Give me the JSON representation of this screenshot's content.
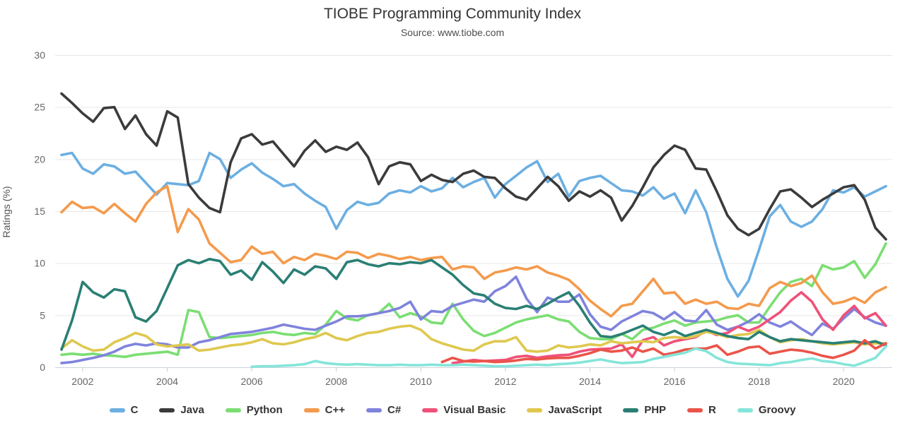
{
  "header": {
    "title": "TIOBE Programming Community Index",
    "subtitle": "Source: www.tiobe.com"
  },
  "chart_data": {
    "type": "line",
    "title": "TIOBE Programming Community Index",
    "subtitle": "Source: www.tiobe.com",
    "xlabel": "",
    "ylabel": "Ratings (%)",
    "legend_position": "bottom",
    "grid": "horizontal",
    "x_start": 2001.5,
    "x_step": 0.25,
    "x_end": 2021.0,
    "xlim": [
      2001.35,
      2021.15
    ],
    "ylim": [
      0,
      30
    ],
    "y_ticks": [
      0,
      5,
      10,
      15,
      20,
      25,
      30
    ],
    "x_ticks": [
      2002,
      2004,
      2006,
      2008,
      2010,
      2012,
      2014,
      2016,
      2018,
      2020
    ],
    "series": [
      {
        "name": "C",
        "color": "#6CAFE2",
        "values": [
          20.4,
          20.6,
          19.1,
          18.6,
          19.5,
          19.3,
          18.6,
          18.8,
          17.7,
          16.6,
          17.7,
          17.6,
          17.5,
          17.9,
          20.6,
          20.0,
          18.2,
          19.0,
          19.6,
          18.7,
          18.1,
          17.4,
          17.6,
          16.7,
          16.0,
          15.4,
          13.3,
          15.1,
          15.9,
          15.6,
          15.8,
          16.7,
          17.0,
          16.8,
          17.4,
          16.9,
          17.2,
          18.2,
          17.3,
          17.8,
          18.2,
          16.3,
          17.6,
          18.4,
          19.2,
          19.8,
          17.8,
          18.6,
          16.4,
          17.9,
          18.2,
          18.4,
          17.7,
          17.0,
          16.9,
          16.5,
          17.3,
          16.2,
          16.7,
          14.8,
          17.0,
          14.9,
          11.5,
          8.5,
          6.8,
          8.3,
          11.3,
          14.5,
          15.6,
          14.0,
          13.5,
          14.0,
          15.2,
          17.0,
          16.8,
          17.3,
          16.4,
          16.9,
          17.4
        ]
      },
      {
        "name": "Java",
        "color": "#3B3B3B",
        "values": [
          26.3,
          25.4,
          24.4,
          23.6,
          24.9,
          25.0,
          22.9,
          24.2,
          22.4,
          21.3,
          24.6,
          24.0,
          17.6,
          16.3,
          15.3,
          14.9,
          19.7,
          22.0,
          22.4,
          21.4,
          21.7,
          20.5,
          19.3,
          20.8,
          21.8,
          20.7,
          21.2,
          20.9,
          21.6,
          20.2,
          17.6,
          19.3,
          19.7,
          19.5,
          17.9,
          18.5,
          18.0,
          17.8,
          18.6,
          18.9,
          18.3,
          18.2,
          17.2,
          16.4,
          16.1,
          17.2,
          18.3,
          17.4,
          16.0,
          16.9,
          16.4,
          17.0,
          16.3,
          14.1,
          15.5,
          17.3,
          19.2,
          20.4,
          21.3,
          20.9,
          19.1,
          19.0,
          16.9,
          14.6,
          13.3,
          12.7,
          13.3,
          15.2,
          16.9,
          17.1,
          16.3,
          15.4,
          16.1,
          16.7,
          17.3,
          17.5,
          16.1,
          13.4,
          12.3
        ]
      },
      {
        "name": "Python",
        "color": "#7BDE73",
        "values": [
          1.2,
          1.3,
          1.2,
          1.3,
          1.15,
          1.1,
          1.0,
          1.2,
          1.3,
          1.4,
          1.5,
          1.2,
          5.5,
          5.3,
          2.9,
          2.8,
          2.9,
          3.0,
          3.1,
          3.3,
          3.4,
          3.2,
          3.1,
          3.3,
          3.2,
          4.1,
          5.4,
          4.7,
          4.5,
          5.0,
          5.2,
          6.1,
          4.8,
          5.2,
          4.9,
          4.3,
          4.2,
          6.1,
          4.6,
          3.5,
          3.0,
          3.3,
          3.8,
          4.3,
          4.6,
          4.8,
          5.0,
          4.6,
          4.4,
          3.4,
          2.8,
          2.7,
          2.7,
          3.2,
          2.7,
          3.6,
          3.8,
          4.2,
          4.5,
          4.0,
          4.3,
          4.4,
          4.5,
          4.8,
          5.0,
          4.3,
          4.3,
          5.8,
          7.2,
          8.2,
          8.5,
          7.8,
          9.8,
          9.4,
          9.6,
          10.2,
          8.6,
          9.9,
          11.9
        ]
      },
      {
        "name": "C++",
        "color": "#F49A4C",
        "values": [
          14.9,
          15.9,
          15.3,
          15.4,
          14.8,
          15.7,
          14.8,
          14.0,
          15.7,
          16.8,
          17.4,
          13.0,
          15.2,
          14.2,
          11.9,
          11.0,
          10.1,
          10.3,
          11.6,
          10.9,
          11.1,
          10.0,
          10.6,
          10.3,
          10.9,
          10.7,
          10.4,
          11.1,
          11.0,
          10.5,
          10.9,
          10.7,
          10.4,
          10.6,
          10.3,
          10.5,
          10.6,
          9.4,
          9.7,
          9.6,
          8.5,
          9.1,
          9.3,
          9.6,
          9.4,
          9.7,
          9.1,
          8.8,
          8.4,
          7.5,
          6.4,
          5.6,
          4.9,
          5.9,
          6.1,
          7.3,
          8.5,
          7.1,
          7.2,
          6.1,
          6.5,
          6.1,
          6.3,
          5.7,
          5.6,
          6.1,
          5.9,
          7.6,
          8.2,
          7.8,
          8.1,
          8.8,
          7.2,
          6.1,
          6.3,
          6.7,
          6.2,
          7.2,
          7.7
        ]
      },
      {
        "name": "C#",
        "color": "#7F83DC",
        "values": [
          0.4,
          0.5,
          0.7,
          0.9,
          1.15,
          1.5,
          2.0,
          2.25,
          2.1,
          2.3,
          2.2,
          1.9,
          1.9,
          2.4,
          2.6,
          2.9,
          3.2,
          3.3,
          3.4,
          3.6,
          3.8,
          4.1,
          3.9,
          3.7,
          3.6,
          4.0,
          4.4,
          4.9,
          4.9,
          5.0,
          5.2,
          5.4,
          5.7,
          6.3,
          4.6,
          5.4,
          5.3,
          5.9,
          6.2,
          6.5,
          6.3,
          7.3,
          7.8,
          8.7,
          6.6,
          5.3,
          6.7,
          6.3,
          6.3,
          7.0,
          5.1,
          3.9,
          3.6,
          4.4,
          4.9,
          5.4,
          5.2,
          4.6,
          5.3,
          4.5,
          4.4,
          5.5,
          4.1,
          3.6,
          3.9,
          4.4,
          5.1,
          4.3,
          3.9,
          4.4,
          3.7,
          3.1,
          4.2,
          3.7,
          4.7,
          5.6,
          4.8,
          4.3,
          4.0
        ]
      },
      {
        "name": "Visual Basic",
        "color": "#EF5179",
        "values": [
          null,
          null,
          null,
          null,
          null,
          null,
          null,
          null,
          null,
          null,
          null,
          null,
          null,
          null,
          null,
          null,
          null,
          null,
          null,
          null,
          null,
          null,
          null,
          null,
          null,
          null,
          null,
          null,
          null,
          null,
          null,
          null,
          null,
          null,
          null,
          null,
          null,
          0.4,
          0.55,
          0.7,
          0.6,
          0.65,
          0.7,
          1.0,
          1.1,
          0.9,
          1.05,
          1.15,
          1.2,
          1.5,
          1.7,
          1.75,
          1.8,
          2.2,
          1.0,
          2.6,
          2.9,
          2.1,
          2.5,
          2.7,
          2.9,
          3.5,
          3.1,
          3.3,
          3.9,
          3.5,
          3.9,
          4.6,
          5.3,
          6.4,
          7.2,
          6.3,
          4.6,
          3.6,
          5.0,
          5.9,
          4.7,
          5.2,
          4.0
        ]
      },
      {
        "name": "JavaScript",
        "color": "#DFC84F",
        "values": [
          1.8,
          2.6,
          2.0,
          1.6,
          1.7,
          2.4,
          2.8,
          3.3,
          3.0,
          2.2,
          2.0,
          2.1,
          2.2,
          1.6,
          1.7,
          1.9,
          2.1,
          2.2,
          2.4,
          2.7,
          2.3,
          2.2,
          2.4,
          2.7,
          2.9,
          3.3,
          2.8,
          2.6,
          3.0,
          3.3,
          3.4,
          3.7,
          3.9,
          4.0,
          3.6,
          2.7,
          2.3,
          2.0,
          1.7,
          1.6,
          2.2,
          2.5,
          2.5,
          2.9,
          1.6,
          1.5,
          1.6,
          2.1,
          1.9,
          2.0,
          2.2,
          2.1,
          2.5,
          2.3,
          2.4,
          2.5,
          2.4,
          2.8,
          2.9,
          2.8,
          3.0,
          3.4,
          3.2,
          2.9,
          3.1,
          3.2,
          3.6,
          2.9,
          2.4,
          2.6,
          2.7,
          2.5,
          2.3,
          2.2,
          2.3,
          2.4,
          2.2,
          2.3,
          2.3
        ]
      },
      {
        "name": "PHP",
        "color": "#2A7F74",
        "values": [
          1.7,
          4.5,
          8.2,
          7.2,
          6.7,
          7.5,
          7.3,
          4.8,
          4.4,
          5.4,
          7.6,
          9.8,
          10.3,
          10.0,
          10.4,
          10.2,
          8.9,
          9.3,
          8.4,
          10.1,
          9.2,
          8.1,
          9.4,
          8.9,
          9.7,
          9.5,
          8.5,
          10.1,
          10.3,
          9.9,
          9.7,
          10.0,
          9.9,
          10.1,
          10.0,
          10.3,
          9.6,
          8.9,
          7.9,
          7.1,
          6.9,
          6.1,
          5.7,
          5.6,
          5.9,
          5.6,
          6.1,
          6.7,
          7.2,
          5.9,
          4.3,
          3.0,
          2.9,
          3.2,
          3.6,
          4.0,
          3.4,
          3.1,
          3.5,
          3.0,
          3.3,
          3.6,
          3.3,
          3.0,
          2.8,
          2.7,
          3.4,
          2.9,
          2.5,
          2.7,
          2.6,
          2.5,
          2.4,
          2.3,
          2.4,
          2.5,
          2.3,
          2.5,
          2.1
        ]
      },
      {
        "name": "R",
        "color": "#EB5449",
        "values": [
          null,
          null,
          null,
          null,
          null,
          null,
          null,
          null,
          null,
          null,
          null,
          null,
          null,
          null,
          null,
          null,
          null,
          null,
          null,
          null,
          null,
          null,
          null,
          null,
          null,
          null,
          null,
          null,
          null,
          null,
          null,
          null,
          null,
          null,
          null,
          null,
          0.5,
          0.9,
          0.6,
          0.55,
          0.6,
          0.5,
          0.55,
          0.65,
          0.8,
          0.75,
          0.85,
          0.9,
          0.9,
          1.1,
          1.35,
          1.7,
          1.5,
          1.6,
          1.9,
          1.5,
          1.8,
          1.2,
          1.4,
          1.7,
          1.8,
          1.8,
          2.1,
          1.2,
          1.5,
          1.9,
          2.0,
          1.3,
          1.5,
          1.7,
          1.6,
          1.4,
          1.1,
          0.9,
          1.2,
          1.6,
          2.6,
          1.8,
          2.3
        ]
      },
      {
        "name": "Groovy",
        "color": "#84E5D9",
        "values": [
          null,
          null,
          null,
          null,
          null,
          null,
          null,
          null,
          null,
          null,
          null,
          null,
          null,
          null,
          null,
          null,
          null,
          null,
          0.05,
          0.1,
          0.1,
          0.15,
          0.2,
          0.3,
          0.6,
          0.4,
          0.3,
          0.25,
          0.3,
          0.25,
          0.2,
          0.2,
          0.25,
          0.2,
          0.2,
          0.25,
          0.2,
          0.2,
          0.25,
          0.2,
          0.15,
          0.1,
          0.1,
          0.15,
          0.2,
          0.25,
          0.2,
          0.3,
          0.35,
          0.45,
          0.6,
          0.75,
          0.55,
          0.4,
          0.45,
          0.5,
          0.8,
          1.0,
          1.2,
          1.4,
          1.8,
          1.55,
          0.9,
          0.5,
          0.35,
          0.3,
          0.25,
          0.2,
          0.4,
          0.5,
          0.7,
          0.85,
          0.6,
          0.5,
          0.3,
          0.15,
          0.5,
          0.9,
          2.0
        ]
      }
    ]
  }
}
